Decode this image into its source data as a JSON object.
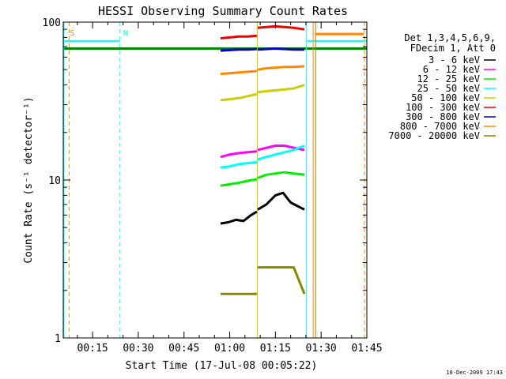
{
  "chart_data": {
    "type": "line",
    "title": "HESSI Observing Summary Count Rates",
    "xlabel": "Start Time (17-Jul-08 00:05:22)",
    "ylabel": "Count Rate (s⁻¹ detector⁻¹)",
    "ylog": true,
    "ylim": [
      1,
      100
    ],
    "xlim_minutes": [
      5.37,
      105
    ],
    "x_ticks": [
      "00:15",
      "00:30",
      "00:45",
      "01:00",
      "01:15",
      "01:30",
      "01:45"
    ],
    "x_tick_minutes": [
      15,
      30,
      45,
      60,
      75,
      90,
      105
    ],
    "y_ticks": [
      "1",
      "10",
      "100"
    ],
    "y_tick_values": [
      1,
      10,
      100
    ],
    "legend": {
      "position": "right",
      "header": [
        "Det 1,3,4,5,6,9,",
        "FDecim 1, Att 0"
      ]
    },
    "series": [
      {
        "name": "3 - 6 keV",
        "color": "#000000",
        "segments": [
          {
            "x": [
              57,
              59.5,
              62,
              64.5,
              67,
              68.9
            ],
            "y": [
              5.3,
              5.4,
              5.6,
              5.5,
              6.0,
              6.3
            ]
          },
          {
            "x": [
              69.2,
              72,
              75,
              77.5,
              80,
              82.5,
              84.5
            ],
            "y": [
              6.5,
              7.0,
              8.0,
              8.3,
              7.2,
              6.8,
              6.5
            ]
          }
        ]
      },
      {
        "name": "6 - 12 keV",
        "color": "#ff00ff",
        "segments": [
          {
            "x": [
              57,
              60,
              63,
              66,
              68.9
            ],
            "y": [
              14.0,
              14.5,
              14.8,
              15.0,
              15.2
            ]
          },
          {
            "x": [
              69.2,
              72,
              75,
              78,
              81,
              84.5
            ],
            "y": [
              15.5,
              16.0,
              16.5,
              16.5,
              16.0,
              15.5
            ]
          }
        ]
      },
      {
        "name": "12 - 25 keV",
        "color": "#00ee00",
        "segments": [
          {
            "x": [
              57,
              60,
              63,
              66,
              68.9
            ],
            "y": [
              9.2,
              9.4,
              9.6,
              9.9,
              10.1
            ]
          },
          {
            "x": [
              69.2,
              72,
              75,
              78,
              81,
              84.5
            ],
            "y": [
              10.3,
              10.8,
              11.0,
              11.2,
              11.0,
              10.8
            ]
          }
        ]
      },
      {
        "name": "25 - 50 keV",
        "color": "#00ffff",
        "segments": [
          {
            "x": [
              57,
              60,
              63,
              66,
              68.9
            ],
            "y": [
              12.0,
              12.2,
              12.6,
              12.8,
              13.0
            ]
          },
          {
            "x": [
              69.2,
              72,
              75,
              78,
              81,
              84.5
            ],
            "y": [
              13.5,
              14.0,
              14.5,
              15.0,
              15.5,
              16.5
            ]
          }
        ]
      },
      {
        "name": "50 - 100 keV",
        "color": "#cccc00",
        "segments": [
          {
            "x": [
              57,
              60,
              63,
              66,
              68.9
            ],
            "y": [
              32,
              32.5,
              33,
              34,
              35
            ]
          },
          {
            "x": [
              69.2,
              72,
              75,
              78,
              81,
              84.5
            ],
            "y": [
              36,
              36.5,
              37,
              37.5,
              38,
              40
            ]
          }
        ]
      },
      {
        "name": "100 - 300 keV",
        "color": "#ee0000",
        "segments": [
          {
            "x": [
              57,
              60,
              63,
              66,
              68.9
            ],
            "y": [
              79,
              80,
              81,
              81,
              82
            ]
          },
          {
            "x": [
              69.2,
              72,
              75,
              78,
              81,
              84.5
            ],
            "y": [
              92,
              93,
              94,
              93,
              92,
              90
            ]
          }
        ]
      },
      {
        "name": "300 - 800 keV",
        "color": "#0000cc",
        "segments": [
          {
            "x": [
              57,
              60,
              63,
              66,
              68.9
            ],
            "y": [
              66,
              66.5,
              67,
              67,
              67.5
            ]
          },
          {
            "x": [
              69.2,
              72,
              75,
              78,
              81,
              84.5
            ],
            "y": [
              67,
              67.5,
              68,
              67.5,
              67,
              67
            ]
          }
        ]
      },
      {
        "name": "800 - 7000 keV",
        "color": "#ff8800",
        "segments": [
          {
            "x": [
              57,
              60,
              63,
              66,
              68.9
            ],
            "y": [
              47,
              47.5,
              48,
              48.5,
              49
            ]
          },
          {
            "x": [
              69.2,
              72,
              75,
              78,
              81,
              84.5
            ],
            "y": [
              50,
              51,
              51.5,
              52,
              52,
              52.5
            ]
          },
          {
            "x": [
              88,
              92,
              96,
              100,
              104
            ],
            "y": [
              84,
              84,
              84,
              84,
              84
            ]
          }
        ]
      },
      {
        "name": "7000 - 20000 keV",
        "color": "#888800",
        "segments": [
          {
            "x": [
              57,
              60,
              63,
              66,
              68.9
            ],
            "y": [
              1.9,
              1.9,
              1.9,
              1.9,
              1.9
            ]
          },
          {
            "x": [
              69.2,
              72,
              75,
              78,
              81,
              84.5
            ],
            "y": [
              2.8,
              2.8,
              2.8,
              2.8,
              2.8,
              1.9
            ]
          }
        ]
      }
    ],
    "reference_lines": [
      {
        "color": "#00ffff",
        "x": [
          5.37,
          24
        ],
        "y": [
          76,
          76
        ],
        "width": 2
      },
      {
        "color": "#00ffff",
        "x": [
          85.5,
          105
        ],
        "y": [
          76,
          76
        ],
        "width": 2
      },
      {
        "color": "#008800",
        "x": [
          5.37,
          105
        ],
        "y": [
          68,
          68
        ],
        "width": 3
      }
    ],
    "vertical_markers": [
      {
        "x": 5.6,
        "color": "#00ffff",
        "style": "solid"
      },
      {
        "x": 7.3,
        "color": "#ff8800",
        "style": "dashed"
      },
      {
        "x": 24,
        "color": "#00ffff",
        "style": "dashed"
      },
      {
        "x": 69.05,
        "color": "#cccc00",
        "style": "solid"
      },
      {
        "x": 85.2,
        "color": "#00ffff",
        "style": "solid"
      },
      {
        "x": 87.4,
        "color": "#ff8800",
        "style": "solid"
      },
      {
        "x": 88.2,
        "color": "#888800",
        "style": "solid"
      },
      {
        "x": 104.2,
        "color": "#ff8800",
        "style": "dashed"
      }
    ],
    "annotations": [
      {
        "text": "S",
        "x": 8.3,
        "color": "#ff8800"
      },
      {
        "text": "N",
        "x": 25.8,
        "color": "#00ffff"
      }
    ],
    "footer_date": "10-Dec-2009 17:43"
  }
}
